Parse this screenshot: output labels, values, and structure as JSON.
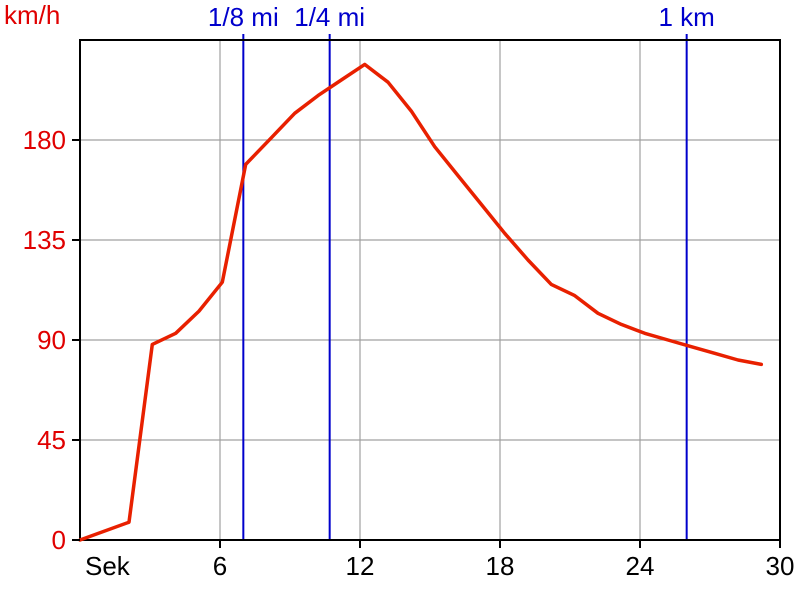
{
  "chart_data": {
    "type": "line",
    "y_unit_label": "km/h",
    "x_unit_label": "Sek",
    "xlim": [
      0,
      30
    ],
    "ylim": [
      0,
      225
    ],
    "x_ticks": [
      6,
      12,
      18,
      24,
      30
    ],
    "y_ticks": [
      0,
      45,
      90,
      135,
      180
    ],
    "grid": true,
    "series": [
      {
        "color": "#e82000",
        "points": [
          [
            0,
            0
          ],
          [
            2.1,
            8
          ],
          [
            3.1,
            88
          ],
          [
            4.1,
            93
          ],
          [
            5.1,
            103
          ],
          [
            6.1,
            116
          ],
          [
            7.1,
            169
          ],
          [
            8.2,
            181
          ],
          [
            9.2,
            192
          ],
          [
            10.2,
            200
          ],
          [
            11.2,
            207
          ],
          [
            12.2,
            214
          ],
          [
            13.2,
            206
          ],
          [
            14.2,
            193
          ],
          [
            15.2,
            177
          ],
          [
            16.2,
            164
          ],
          [
            17.2,
            151
          ],
          [
            18.2,
            138
          ],
          [
            19.2,
            126
          ],
          [
            20.2,
            115
          ],
          [
            21.2,
            110
          ],
          [
            22.2,
            102
          ],
          [
            23.2,
            97
          ],
          [
            24.2,
            93
          ],
          [
            25.2,
            90
          ],
          [
            26.2,
            87
          ],
          [
            27.2,
            84
          ],
          [
            28.2,
            81
          ],
          [
            29.2,
            79
          ]
        ]
      }
    ],
    "markers": [
      {
        "label": "1/8 mi",
        "x": 7.0
      },
      {
        "label": "1/4 mi",
        "x": 10.7
      },
      {
        "label": "1 km",
        "x": 26.0
      }
    ]
  }
}
